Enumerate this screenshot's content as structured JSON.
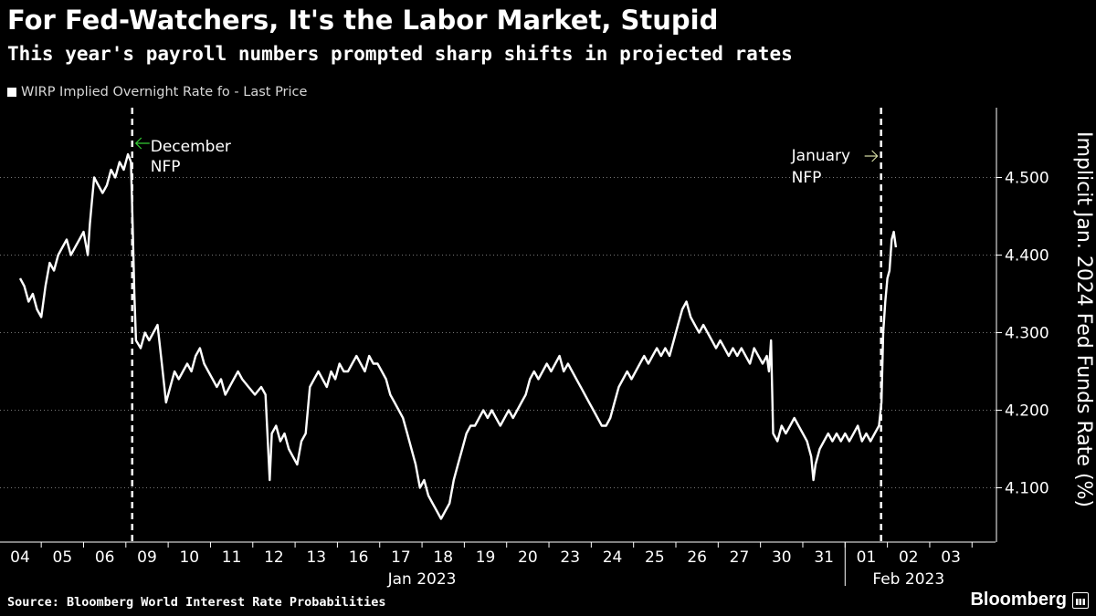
{
  "header": {
    "title": "For Fed-Watchers, It's the Labor Market, Stupid",
    "subtitle": "This year's payroll numbers prompted sharp shifts in projected rates",
    "legend_label": "WIRP Implied Overnight Rate fo - Last Price"
  },
  "footer": {
    "source": "Source: Bloomberg World Interest Rate Probabilities",
    "brand": "Bloomberg"
  },
  "colors": {
    "background": "#000000",
    "line": "#ffffff",
    "grid": "#777777",
    "annotation_green": "#33cc33"
  },
  "chart_data": {
    "type": "line",
    "ylabel": "Implicit Jan. 2024 Fed Funds Rate (%)",
    "ylim": [
      4.03,
      4.59
    ],
    "yticks": [
      4.1,
      4.2,
      4.3,
      4.4,
      4.5
    ],
    "ytick_labels": [
      "4.100",
      "4.200",
      "4.300",
      "4.400",
      "4.500"
    ],
    "grid": true,
    "legend_position": "top-left",
    "x_categories": [
      "04",
      "05",
      "06",
      "09",
      "10",
      "11",
      "12",
      "13",
      "16",
      "17",
      "18",
      "19",
      "20",
      "23",
      "24",
      "25",
      "26",
      "27",
      "30",
      "31",
      "01",
      "02",
      "03"
    ],
    "x_groups": [
      {
        "label": "Jan 2023",
        "from": 0,
        "to": 19
      },
      {
        "label": "Feb 2023",
        "from": 20,
        "to": 22
      }
    ],
    "series": [
      {
        "name": "WIRP Implied Overnight Rate fo - Last Price",
        "points": [
          [
            0.0,
            4.37
          ],
          [
            0.1,
            4.36
          ],
          [
            0.2,
            4.34
          ],
          [
            0.3,
            4.35
          ],
          [
            0.4,
            4.33
          ],
          [
            0.5,
            4.32
          ],
          [
            0.6,
            4.36
          ],
          [
            0.7,
            4.39
          ],
          [
            0.8,
            4.38
          ],
          [
            0.9,
            4.4
          ],
          [
            1.0,
            4.41
          ],
          [
            1.1,
            4.42
          ],
          [
            1.2,
            4.4
          ],
          [
            1.3,
            4.41
          ],
          [
            1.4,
            4.42
          ],
          [
            1.5,
            4.43
          ],
          [
            1.6,
            4.4
          ],
          [
            1.65,
            4.44
          ],
          [
            1.7,
            4.47
          ],
          [
            1.75,
            4.5
          ],
          [
            1.85,
            4.49
          ],
          [
            1.95,
            4.48
          ],
          [
            2.05,
            4.49
          ],
          [
            2.15,
            4.51
          ],
          [
            2.25,
            4.5
          ],
          [
            2.35,
            4.52
          ],
          [
            2.45,
            4.51
          ],
          [
            2.55,
            4.53
          ],
          [
            2.62,
            4.52
          ],
          [
            2.66,
            4.44
          ],
          [
            2.7,
            4.35
          ],
          [
            2.74,
            4.29
          ],
          [
            2.85,
            4.28
          ],
          [
            2.95,
            4.3
          ],
          [
            3.05,
            4.29
          ],
          [
            3.15,
            4.3
          ],
          [
            3.25,
            4.31
          ],
          [
            3.35,
            4.26
          ],
          [
            3.45,
            4.21
          ],
          [
            3.55,
            4.23
          ],
          [
            3.65,
            4.25
          ],
          [
            3.75,
            4.24
          ],
          [
            3.85,
            4.25
          ],
          [
            3.95,
            4.26
          ],
          [
            4.05,
            4.25
          ],
          [
            4.15,
            4.27
          ],
          [
            4.25,
            4.28
          ],
          [
            4.35,
            4.26
          ],
          [
            4.45,
            4.25
          ],
          [
            4.55,
            4.24
          ],
          [
            4.65,
            4.23
          ],
          [
            4.75,
            4.24
          ],
          [
            4.85,
            4.22
          ],
          [
            4.95,
            4.23
          ],
          [
            5.05,
            4.24
          ],
          [
            5.15,
            4.25
          ],
          [
            5.25,
            4.24
          ],
          [
            5.4,
            4.23
          ],
          [
            5.55,
            4.22
          ],
          [
            5.7,
            4.23
          ],
          [
            5.8,
            4.22
          ],
          [
            5.9,
            4.11
          ],
          [
            5.95,
            4.17
          ],
          [
            6.05,
            4.18
          ],
          [
            6.15,
            4.16
          ],
          [
            6.25,
            4.17
          ],
          [
            6.35,
            4.15
          ],
          [
            6.45,
            4.14
          ],
          [
            6.55,
            4.13
          ],
          [
            6.65,
            4.16
          ],
          [
            6.75,
            4.17
          ],
          [
            6.85,
            4.23
          ],
          [
            6.95,
            4.24
          ],
          [
            7.05,
            4.25
          ],
          [
            7.15,
            4.24
          ],
          [
            7.25,
            4.23
          ],
          [
            7.35,
            4.25
          ],
          [
            7.45,
            4.24
          ],
          [
            7.55,
            4.26
          ],
          [
            7.65,
            4.25
          ],
          [
            7.75,
            4.25
          ],
          [
            7.85,
            4.26
          ],
          [
            7.95,
            4.27
          ],
          [
            8.05,
            4.26
          ],
          [
            8.15,
            4.25
          ],
          [
            8.25,
            4.27
          ],
          [
            8.35,
            4.26
          ],
          [
            8.45,
            4.26
          ],
          [
            8.55,
            4.25
          ],
          [
            8.65,
            4.24
          ],
          [
            8.75,
            4.22
          ],
          [
            8.85,
            4.21
          ],
          [
            8.95,
            4.2
          ],
          [
            9.05,
            4.19
          ],
          [
            9.15,
            4.17
          ],
          [
            9.25,
            4.15
          ],
          [
            9.35,
            4.13
          ],
          [
            9.45,
            4.1
          ],
          [
            9.55,
            4.11
          ],
          [
            9.65,
            4.09
          ],
          [
            9.75,
            4.08
          ],
          [
            9.85,
            4.07
          ],
          [
            9.95,
            4.06
          ],
          [
            10.05,
            4.07
          ],
          [
            10.15,
            4.08
          ],
          [
            10.25,
            4.11
          ],
          [
            10.35,
            4.13
          ],
          [
            10.45,
            4.15
          ],
          [
            10.55,
            4.17
          ],
          [
            10.65,
            4.18
          ],
          [
            10.75,
            4.18
          ],
          [
            10.85,
            4.19
          ],
          [
            10.95,
            4.2
          ],
          [
            11.05,
            4.19
          ],
          [
            11.15,
            4.2
          ],
          [
            11.25,
            4.19
          ],
          [
            11.35,
            4.18
          ],
          [
            11.45,
            4.19
          ],
          [
            11.55,
            4.2
          ],
          [
            11.65,
            4.19
          ],
          [
            11.75,
            4.2
          ],
          [
            11.85,
            4.21
          ],
          [
            11.95,
            4.22
          ],
          [
            12.05,
            4.24
          ],
          [
            12.15,
            4.25
          ],
          [
            12.25,
            4.24
          ],
          [
            12.35,
            4.25
          ],
          [
            12.45,
            4.26
          ],
          [
            12.55,
            4.25
          ],
          [
            12.65,
            4.26
          ],
          [
            12.75,
            4.27
          ],
          [
            12.85,
            4.25
          ],
          [
            12.95,
            4.26
          ],
          [
            13.05,
            4.25
          ],
          [
            13.15,
            4.24
          ],
          [
            13.25,
            4.23
          ],
          [
            13.35,
            4.22
          ],
          [
            13.45,
            4.21
          ],
          [
            13.55,
            4.2
          ],
          [
            13.65,
            4.19
          ],
          [
            13.75,
            4.18
          ],
          [
            13.85,
            4.18
          ],
          [
            13.95,
            4.19
          ],
          [
            14.05,
            4.21
          ],
          [
            14.15,
            4.23
          ],
          [
            14.25,
            4.24
          ],
          [
            14.35,
            4.25
          ],
          [
            14.45,
            4.24
          ],
          [
            14.55,
            4.25
          ],
          [
            14.65,
            4.26
          ],
          [
            14.75,
            4.27
          ],
          [
            14.85,
            4.26
          ],
          [
            14.95,
            4.27
          ],
          [
            15.05,
            4.28
          ],
          [
            15.15,
            4.27
          ],
          [
            15.25,
            4.28
          ],
          [
            15.35,
            4.27
          ],
          [
            15.45,
            4.29
          ],
          [
            15.55,
            4.31
          ],
          [
            15.65,
            4.33
          ],
          [
            15.75,
            4.34
          ],
          [
            15.85,
            4.32
          ],
          [
            15.95,
            4.31
          ],
          [
            16.05,
            4.3
          ],
          [
            16.15,
            4.31
          ],
          [
            16.25,
            4.3
          ],
          [
            16.35,
            4.29
          ],
          [
            16.45,
            4.28
          ],
          [
            16.55,
            4.29
          ],
          [
            16.65,
            4.28
          ],
          [
            16.75,
            4.27
          ],
          [
            16.85,
            4.28
          ],
          [
            16.95,
            4.27
          ],
          [
            17.05,
            4.28
          ],
          [
            17.15,
            4.27
          ],
          [
            17.25,
            4.26
          ],
          [
            17.35,
            4.28
          ],
          [
            17.45,
            4.27
          ],
          [
            17.55,
            4.26
          ],
          [
            17.65,
            4.27
          ],
          [
            17.7,
            4.25
          ],
          [
            17.75,
            4.29
          ],
          [
            17.8,
            4.17
          ],
          [
            17.9,
            4.16
          ],
          [
            18.0,
            4.18
          ],
          [
            18.1,
            4.17
          ],
          [
            18.2,
            4.18
          ],
          [
            18.3,
            4.19
          ],
          [
            18.4,
            4.18
          ],
          [
            18.5,
            4.17
          ],
          [
            18.6,
            4.16
          ],
          [
            18.7,
            4.14
          ],
          [
            18.75,
            4.11
          ],
          [
            18.8,
            4.13
          ],
          [
            18.9,
            4.15
          ],
          [
            19.0,
            4.16
          ],
          [
            19.1,
            4.17
          ],
          [
            19.2,
            4.16
          ],
          [
            19.3,
            4.17
          ],
          [
            19.4,
            4.16
          ],
          [
            19.5,
            4.17
          ],
          [
            19.6,
            4.16
          ],
          [
            19.7,
            4.17
          ],
          [
            19.8,
            4.18
          ],
          [
            19.9,
            4.16
          ],
          [
            20.0,
            4.17
          ],
          [
            20.1,
            4.16
          ],
          [
            20.2,
            4.17
          ],
          [
            20.3,
            4.18
          ],
          [
            20.36,
            4.21
          ],
          [
            20.4,
            4.3
          ],
          [
            20.45,
            4.34
          ],
          [
            20.5,
            4.37
          ],
          [
            20.55,
            4.38
          ],
          [
            20.6,
            4.42
          ],
          [
            20.65,
            4.43
          ],
          [
            20.7,
            4.41
          ]
        ]
      }
    ],
    "events": [
      {
        "label_line1": "December",
        "label_line2": "NFP",
        "x": 2.65
      },
      {
        "label_line1": "January",
        "label_line2": "NFP",
        "x": 20.35
      }
    ]
  }
}
